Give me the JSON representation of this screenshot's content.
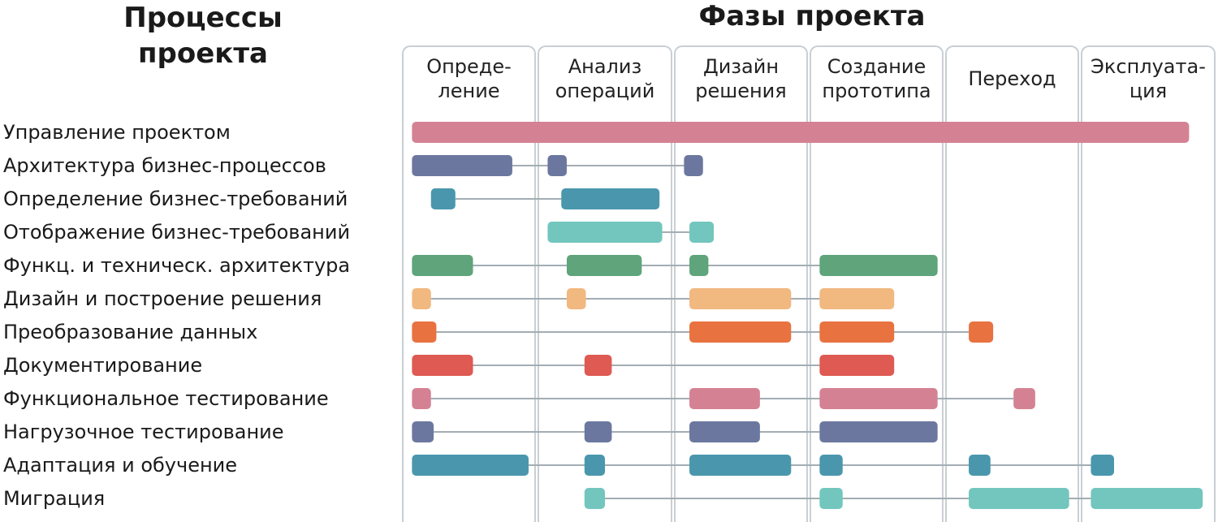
{
  "titles": {
    "processes_line1": "Процессы",
    "processes_line2": "проекта",
    "phases": "Фазы проекта"
  },
  "phases": [
    "Опреде-\nление",
    "Анализ\nопераций",
    "Дизайн\nрешения",
    "Создание\nпрототипа",
    "Переход",
    "Эксплуата-\nция"
  ],
  "processes": [
    {
      "label": "Управление проектом",
      "color": "#d48293",
      "bars": [
        [
          0.08,
          5.8
        ]
      ]
    },
    {
      "label": "Архитектура бизнес-процессов",
      "color": "#6b779e",
      "bars": [
        [
          0.08,
          0.82
        ],
        [
          1.08,
          1.22
        ],
        [
          2.08,
          2.22
        ]
      ]
    },
    {
      "label": "Определение бизнес-требований",
      "color": "#4a97ad",
      "bars": [
        [
          0.22,
          0.4
        ],
        [
          1.18,
          1.9
        ]
      ]
    },
    {
      "label": "Отображение бизнес-требований",
      "color": "#72c6bd",
      "bars": [
        [
          1.08,
          1.92
        ],
        [
          2.12,
          2.3
        ]
      ]
    },
    {
      "label": "Функц. и техническ. архитектура",
      "color": "#5fa47b",
      "bars": [
        [
          0.08,
          0.53
        ],
        [
          1.22,
          1.77
        ],
        [
          2.12,
          2.26
        ],
        [
          3.08,
          3.95
        ]
      ]
    },
    {
      "label": "Дизайн и построение решения",
      "color": "#f1b880",
      "bars": [
        [
          0.08,
          0.22
        ],
        [
          1.22,
          1.36
        ],
        [
          2.12,
          2.87
        ],
        [
          3.08,
          3.63
        ]
      ]
    },
    {
      "label": "Преобразование данных",
      "color": "#e87240",
      "bars": [
        [
          0.08,
          0.26
        ],
        [
          2.12,
          2.87
        ],
        [
          3.08,
          3.63
        ],
        [
          4.18,
          4.36
        ]
      ]
    },
    {
      "label": "Документирование",
      "color": "#de5a52",
      "bars": [
        [
          0.08,
          0.53
        ],
        [
          1.35,
          1.55
        ],
        [
          3.08,
          3.63
        ]
      ]
    },
    {
      "label": "Функциональное тестирование",
      "color": "#d48293",
      "bars": [
        [
          0.08,
          0.22
        ],
        [
          2.12,
          2.64
        ],
        [
          3.08,
          3.95
        ],
        [
          4.51,
          4.67
        ]
      ]
    },
    {
      "label": "Нагрузочное тестирование",
      "color": "#6b779e",
      "bars": [
        [
          0.08,
          0.24
        ],
        [
          1.35,
          1.55
        ],
        [
          2.12,
          2.64
        ],
        [
          3.08,
          3.95
        ]
      ]
    },
    {
      "label": "Адаптация и обучение",
      "color": "#4a97ad",
      "bars": [
        [
          0.08,
          0.94
        ],
        [
          1.35,
          1.5
        ],
        [
          2.12,
          2.87
        ],
        [
          3.08,
          3.25
        ],
        [
          4.18,
          4.34
        ],
        [
          5.08,
          5.25
        ]
      ]
    },
    {
      "label": "Миграция",
      "color": "#72c6bd",
      "bars": [
        [
          1.35,
          1.5
        ],
        [
          3.08,
          3.25
        ],
        [
          4.18,
          4.92
        ],
        [
          5.08,
          5.9
        ]
      ]
    }
  ],
  "colors": {
    "connector": "#a3adb3",
    "column_border": "#c9cfd3"
  }
}
